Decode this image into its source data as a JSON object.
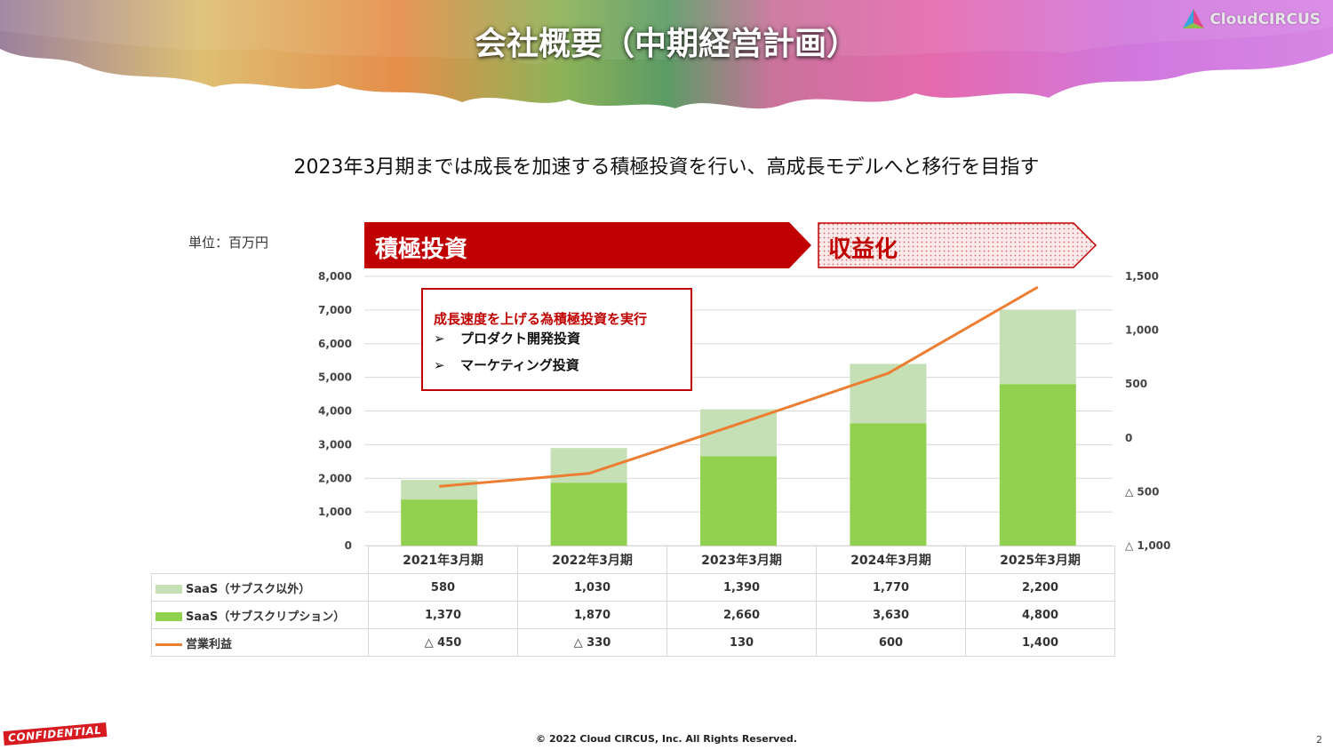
{
  "slide": {
    "title": "会社概要（中期経営計画）",
    "logo_text": "CloudCIRCUS",
    "subtitle": "2023年3月期までは成長を加速する積極投資を行い、高成長モデルへと移行を目指す",
    "unit_label": "単位：百万円",
    "phase_invest_label": "積極投資",
    "phase_profit_label": "収益化",
    "callout": {
      "title": "成長速度を上げる為積極投資を実行",
      "items": [
        "プロダクト開発投資",
        "マーケティング投資"
      ],
      "marker": "➢"
    },
    "confidential_label": "CONFIDENTIAL",
    "footer": "© 2022 Cloud CIRCUS, Inc. All Rights Reserved.",
    "page_number": "2"
  },
  "colors": {
    "saas_other": "#c5e0b4",
    "saas_subscription": "#92d050",
    "operating_profit": "#ed7d31",
    "phase_invest": "#c00000",
    "phase_profit_border": "#c00000"
  },
  "chart_data": {
    "type": "bar",
    "stacked": true,
    "categories": [
      "2021年3月期",
      "2022年3月期",
      "2023年3月期",
      "2024年3月期",
      "2025年3月期"
    ],
    "series": [
      {
        "name": "SaaS（サブスクリプション）",
        "type": "bar",
        "axis": "left",
        "values": [
          1370,
          1870,
          2660,
          3630,
          4800
        ],
        "labels": [
          "1,370",
          "1,870",
          "2,660",
          "3,630",
          "4,800"
        ]
      },
      {
        "name": "SaaS（サブスク以外）",
        "type": "bar",
        "axis": "left",
        "values": [
          580,
          1030,
          1390,
          1770,
          2200
        ],
        "labels": [
          "580",
          "1,030",
          "1,390",
          "1,770",
          "2,200"
        ]
      },
      {
        "name": "営業利益",
        "type": "line",
        "axis": "right",
        "values": [
          -450,
          -330,
          130,
          600,
          1400
        ],
        "labels": [
          "△ 450",
          "△ 330",
          "130",
          "600",
          "1,400"
        ]
      }
    ],
    "y_left": {
      "range": [
        0,
        8000
      ],
      "ticks": [
        {
          "v": 0,
          "label": "0"
        },
        {
          "v": 1000,
          "label": "1,000"
        },
        {
          "v": 2000,
          "label": "2,000"
        },
        {
          "v": 3000,
          "label": "3,000"
        },
        {
          "v": 4000,
          "label": "4,000"
        },
        {
          "v": 5000,
          "label": "5,000"
        },
        {
          "v": 6000,
          "label": "6,000"
        },
        {
          "v": 7000,
          "label": "7,000"
        },
        {
          "v": 8000,
          "label": "8,000"
        }
      ]
    },
    "y_right": {
      "range": [
        -1000,
        1500
      ],
      "ticks": [
        {
          "v": -1000,
          "label": "△ 1,000"
        },
        {
          "v": -500,
          "label": "△ 500"
        },
        {
          "v": 0,
          "label": "0"
        },
        {
          "v": 500,
          "label": "500"
        },
        {
          "v": 1000,
          "label": "1,000"
        },
        {
          "v": 1500,
          "label": "1,500"
        }
      ]
    },
    "table_rows": [
      "SaaS（サブスク以外）",
      "SaaS（サブスクリプション）",
      "営業利益"
    ],
    "grid": true
  }
}
